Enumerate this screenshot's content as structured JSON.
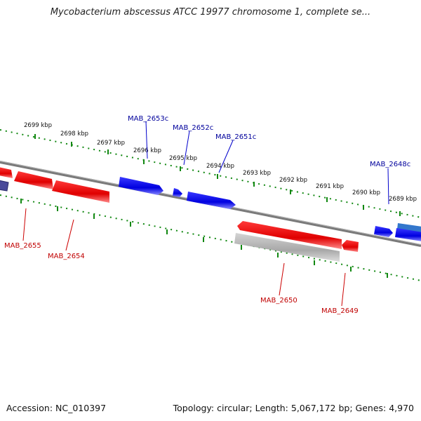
{
  "header": {
    "title": "Mycobacterium abscessus ATCC 19977 chromosome 1, complete se..."
  },
  "footer": {
    "accession": "Accession: NC_010397",
    "summary": "Topology: circular; Length: 5,067,172 bp; Genes: 4,970"
  },
  "colors": {
    "forward_gene": "#0000ee",
    "reverse_gene": "#ee0000",
    "pseudo_gene": "#bbbbbb",
    "scale_ticks": "#118811",
    "backbone": "#808080",
    "forward_label": "#00009c",
    "reverse_label": "#c00000"
  },
  "scale": {
    "outer_ticks": [
      {
        "label": "2699 kbp"
      },
      {
        "label": "2698 kbp"
      },
      {
        "label": "2697 kbp"
      },
      {
        "label": "2696 kbp"
      },
      {
        "label": "2695 kbp"
      },
      {
        "label": "2694 kbp"
      },
      {
        "label": "2693 kbp"
      },
      {
        "label": "2692 kbp"
      },
      {
        "label": "2691 kbp"
      },
      {
        "label": "2690 kbp"
      },
      {
        "label": "2689 kbp"
      }
    ]
  },
  "genes": {
    "forward_labels": [
      "MAB_2653c",
      "MAB_2652c",
      "MAB_2651c",
      "MAB_2648c"
    ],
    "reverse_labels": [
      "MAB_2655",
      "MAB_2654",
      "MAB_2650",
      "MAB_2649"
    ]
  }
}
